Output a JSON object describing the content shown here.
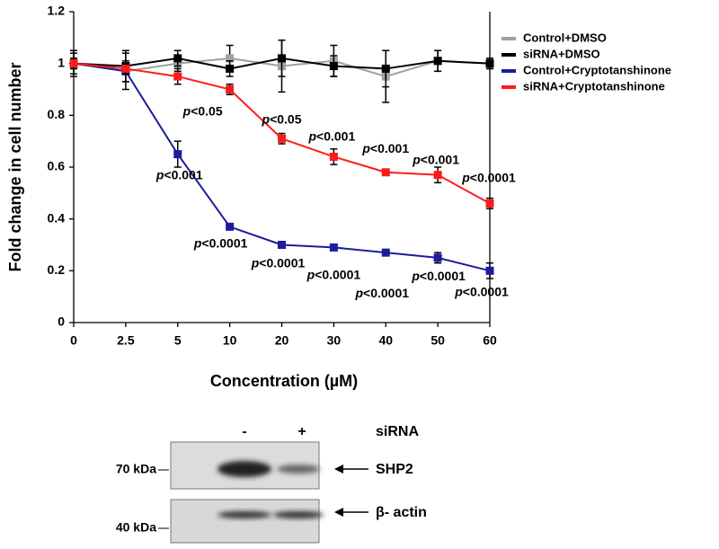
{
  "chart_data": {
    "type": "line",
    "y_label": "Fold change in cell number",
    "x_label": "Concentration (µM)",
    "categories": [
      "0",
      "2.5",
      "5",
      "10",
      "20",
      "30",
      "40",
      "50",
      "60"
    ],
    "ylim": [
      0,
      1.2
    ],
    "yticks": [
      0,
      0.2,
      0.4,
      0.6,
      0.8,
      1,
      1.2
    ],
    "series": [
      {
        "name": "Control+DMSO",
        "color": "#a0a0a0",
        "values": [
          1,
          0.97,
          1.0,
          1.02,
          0.99,
          1.01,
          0.95,
          1.01,
          1.0
        ],
        "errors": [
          0.04,
          0.04,
          0.03,
          0.05,
          0.1,
          0.06,
          0.1,
          0.04,
          0.02
        ]
      },
      {
        "name": "siRNA+DMSO",
        "color": "#000000",
        "values": [
          1,
          0.99,
          1.02,
          0.98,
          1.02,
          0.99,
          0.98,
          1.01,
          1.0
        ],
        "errors": [
          0.05,
          0.06,
          0.03,
          0.03,
          0.07,
          0.04,
          0.07,
          0.04,
          0.02
        ]
      },
      {
        "name": "Control+Cryptotanshinone",
        "color": "#1c1c9c",
        "values": [
          1,
          0.97,
          0.65,
          0.37,
          0.3,
          0.29,
          0.27,
          0.25,
          0.2
        ],
        "errors": [
          0.02,
          0.07,
          0.05,
          0.01,
          0.01,
          0.01,
          0.01,
          0.02,
          0.03
        ],
        "p_values": [
          null,
          null,
          "p<0.001",
          "p<0.0001",
          "p<0.0001",
          "p<0.0001",
          "p<0.0001",
          "p<0.0001",
          "p<0.0001"
        ]
      },
      {
        "name": "siRNA+Cryptotanshinone",
        "color": "#ff1a1a",
        "values": [
          1,
          0.98,
          0.95,
          0.9,
          0.71,
          0.64,
          0.58,
          0.57,
          0.46
        ],
        "errors": [
          0.02,
          0.02,
          0.03,
          0.02,
          0.02,
          0.03,
          0.01,
          0.03,
          0.02
        ],
        "p_values": [
          null,
          null,
          null,
          "p<0.05",
          "p<0.05",
          "p<0.001",
          "p<0.001",
          "p<0.001",
          "p<0.0001"
        ]
      }
    ]
  },
  "blot": {
    "lanes": [
      "-",
      "+"
    ],
    "treatment": "siRNA",
    "markers": [
      "70 kDa",
      "40 kDa"
    ],
    "bands": [
      "SHP2",
      "β- actin"
    ]
  }
}
